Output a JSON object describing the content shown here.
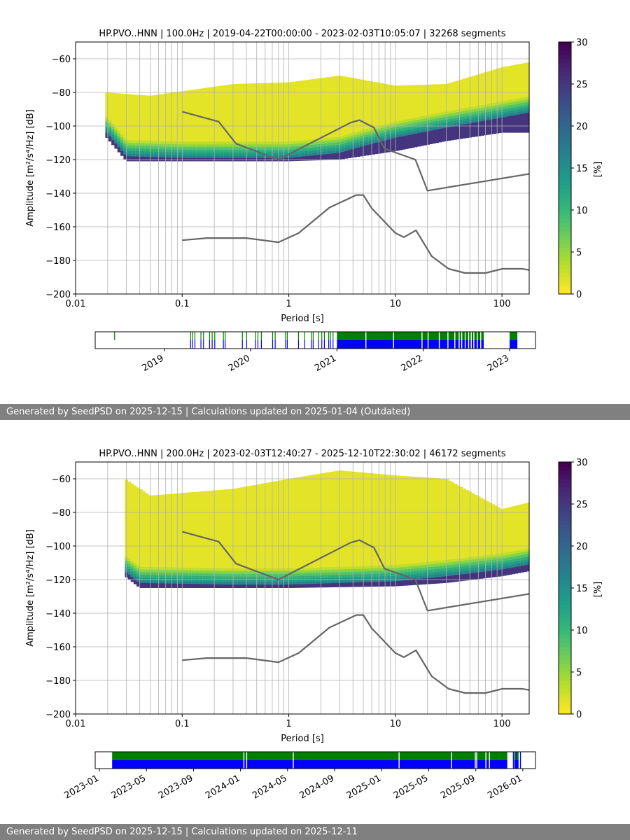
{
  "chart_data": [
    {
      "type": "heatmap",
      "title": "HP.PVO..HNN | 100.0Hz | 2019-04-22T00:00:00 - 2023-02-03T10:05:07 | 32268 segments",
      "xlabel": "Period [s]",
      "ylabel": "Amplitude [m²/s⁴/Hz] [dB]",
      "xscale": "log",
      "xlim": [
        0.01,
        180
      ],
      "ylim": [
        -200,
        -50
      ],
      "xticks": [
        "0.01",
        "0.1",
        "1",
        "10",
        "100"
      ],
      "yticks": [
        "−200",
        "−180",
        "−160",
        "−140",
        "−120",
        "−100",
        "−80",
        "−60"
      ],
      "colorbar": {
        "label": "[%]",
        "min": 0,
        "max": 30,
        "ticks": [
          "0",
          "5",
          "10",
          "15",
          "20",
          "25",
          "30"
        ],
        "colormap": "viridis_r"
      },
      "reference_curves": {
        "high_noise": [
          [
            0.1,
            -91.5
          ],
          [
            0.22,
            -97.4
          ],
          [
            0.32,
            -110.5
          ],
          [
            0.8,
            -120
          ],
          [
            3.8,
            -98
          ],
          [
            4.6,
            -96.5
          ],
          [
            6.3,
            -101
          ],
          [
            7.9,
            -113.5
          ],
          [
            15.4,
            -120
          ],
          [
            20,
            -138.5
          ],
          [
            180,
            -128.5
          ]
        ],
        "low_noise": [
          [
            0.1,
            -168
          ],
          [
            0.17,
            -166.7
          ],
          [
            0.4,
            -166.7
          ],
          [
            0.8,
            -169.2
          ],
          [
            1.24,
            -163.7
          ],
          [
            2.4,
            -148.6
          ],
          [
            4.3,
            -141.1
          ],
          [
            5.0,
            -141.1
          ],
          [
            6.0,
            -149
          ],
          [
            10,
            -163.7
          ],
          [
            12,
            -166.2
          ],
          [
            15.6,
            -162.1
          ],
          [
            21.9,
            -177.5
          ],
          [
            31.6,
            -185
          ],
          [
            45,
            -187.5
          ],
          [
            70,
            -187.5
          ],
          [
            101,
            -185
          ],
          [
            154,
            -185
          ],
          [
            180,
            -185.7
          ]
        ]
      },
      "psd_distribution": {
        "x_start": 0.019,
        "mode": [
          [
            0.019,
            -103
          ],
          [
            0.03,
            -118
          ],
          [
            0.1,
            -119
          ],
          [
            1,
            -119
          ],
          [
            3,
            -116
          ],
          [
            5,
            -112
          ],
          [
            10,
            -107
          ],
          [
            30,
            -101
          ],
          [
            100,
            -95
          ],
          [
            180,
            -92
          ]
        ],
        "upper": [
          [
            0.019,
            -80
          ],
          [
            0.05,
            -82
          ],
          [
            0.3,
            -75
          ],
          [
            1,
            -74
          ],
          [
            3,
            -70
          ],
          [
            10,
            -76
          ],
          [
            30,
            -75
          ],
          [
            100,
            -65
          ],
          [
            180,
            -62
          ]
        ],
        "lower": [
          [
            0.019,
            -106
          ],
          [
            0.03,
            -121
          ],
          [
            1,
            -121
          ],
          [
            3,
            -120
          ],
          [
            10,
            -115
          ],
          [
            30,
            -109
          ],
          [
            100,
            -104
          ],
          [
            180,
            -104
          ]
        ]
      },
      "availability": {
        "ticks": [
          "2019",
          "2020",
          "2021",
          "2022",
          "2023"
        ],
        "tick_dates": [
          2019.0,
          2020.0,
          2021.0,
          2022.0,
          2023.0
        ],
        "range": [
          2018.2,
          2023.3
        ],
        "full_coverage": [
          [
            2021.0,
            2022.7
          ],
          [
            2023.0,
            2023.09
          ]
        ],
        "sparse_marks": [
          2018.42,
          2019.3,
          2019.32,
          2019.35,
          2019.42,
          2019.45,
          2019.52,
          2019.55,
          2019.58,
          2019.68,
          2019.7,
          2019.9,
          2019.95,
          2020.05,
          2020.08,
          2020.12,
          2020.25,
          2020.28,
          2020.4,
          2020.42,
          2020.55,
          2020.62,
          2020.7,
          2020.72,
          2020.78,
          2020.82,
          2020.85,
          2020.9,
          2020.92,
          2020.95
        ],
        "gaps": [
          2021.33,
          2021.65,
          2021.98,
          2022.05,
          2022.18,
          2022.28,
          2022.36,
          2022.41,
          2022.44,
          2022.48,
          2022.52,
          2022.55,
          2022.58,
          2022.62,
          2022.66
        ]
      }
    },
    {
      "type": "heatmap",
      "title": "HP.PVO..HNN | 200.0Hz | 2023-02-03T12:40:27 - 2025-12-10T22:30:02 | 46172 segments",
      "xlabel": "Period [s]",
      "ylabel": "Amplitude [m²/s⁴/Hz] [dB]",
      "xscale": "log",
      "xlim": [
        0.01,
        180
      ],
      "ylim": [
        -200,
        -50
      ],
      "xticks": [
        "0.01",
        "0.1",
        "1",
        "10",
        "100"
      ],
      "yticks": [
        "−200",
        "−180",
        "−160",
        "−140",
        "−120",
        "−100",
        "−80",
        "−60"
      ],
      "colorbar": {
        "label": "[%]",
        "min": 0,
        "max": 30,
        "ticks": [
          "0",
          "5",
          "10",
          "15",
          "20",
          "25",
          "30"
        ],
        "colormap": "viridis_r"
      },
      "reference_curves": {
        "high_noise": [
          [
            0.1,
            -91.5
          ],
          [
            0.22,
            -97.4
          ],
          [
            0.32,
            -110.5
          ],
          [
            0.8,
            -120
          ],
          [
            3.8,
            -98
          ],
          [
            4.6,
            -96.5
          ],
          [
            6.3,
            -101
          ],
          [
            7.9,
            -113.5
          ],
          [
            15.4,
            -120
          ],
          [
            20,
            -138.5
          ],
          [
            180,
            -128.5
          ]
        ],
        "low_noise": [
          [
            0.1,
            -168
          ],
          [
            0.17,
            -166.7
          ],
          [
            0.4,
            -166.7
          ],
          [
            0.8,
            -169.2
          ],
          [
            1.24,
            -163.7
          ],
          [
            2.4,
            -148.6
          ],
          [
            4.3,
            -141.1
          ],
          [
            5.0,
            -141.1
          ],
          [
            6.0,
            -149
          ],
          [
            10,
            -163.7
          ],
          [
            12,
            -166.2
          ],
          [
            15.6,
            -162.1
          ],
          [
            21.9,
            -177.5
          ],
          [
            31.6,
            -185
          ],
          [
            45,
            -187.5
          ],
          [
            70,
            -187.5
          ],
          [
            101,
            -185
          ],
          [
            154,
            -185
          ],
          [
            180,
            -185.7
          ]
        ]
      },
      "psd_distribution": {
        "x_start": 0.029,
        "mode": [
          [
            0.029,
            -115
          ],
          [
            0.04,
            -122
          ],
          [
            0.3,
            -123
          ],
          [
            1,
            -123
          ],
          [
            3,
            -122
          ],
          [
            10,
            -121
          ],
          [
            30,
            -118
          ],
          [
            100,
            -114
          ],
          [
            180,
            -111
          ]
        ],
        "upper": [
          [
            0.029,
            -60
          ],
          [
            0.05,
            -70
          ],
          [
            0.3,
            -66
          ],
          [
            1,
            -60
          ],
          [
            3,
            -55
          ],
          [
            10,
            -58
          ],
          [
            30,
            -60
          ],
          [
            100,
            -78
          ],
          [
            180,
            -74
          ]
        ],
        "lower": [
          [
            0.029,
            -118
          ],
          [
            0.04,
            -125
          ],
          [
            1,
            -125
          ],
          [
            10,
            -124
          ],
          [
            30,
            -122
          ],
          [
            100,
            -118
          ],
          [
            180,
            -115
          ]
        ]
      },
      "availability": {
        "ticks": [
          "2023-01",
          "2023-05",
          "2023-09",
          "2024-01",
          "2024-05",
          "2024-09",
          "2025-01",
          "2025-05",
          "2025-09",
          "2026-01"
        ],
        "tick_dates": [
          2023.0,
          2023.333,
          2023.667,
          2024.0,
          2024.333,
          2024.667,
          2025.0,
          2025.333,
          2025.667,
          2026.0
        ],
        "range": [
          2022.97,
          2026.09
        ],
        "full_coverage": [
          [
            2023.09,
            2025.89
          ],
          [
            2025.94,
            2025.97
          ]
        ],
        "gaps": [
          2024.02,
          2024.04,
          2024.37,
          2025.12,
          2025.49,
          2025.66,
          2025.67,
          2025.735,
          2025.76
        ],
        "blue_gaps": [
          2024.37,
          2025.12
        ],
        "late_marks": [
          2025.93,
          2025.95,
          2025.98
        ]
      }
    }
  ],
  "footers": [
    "Generated by SeedPSD on 2025-12-15 | Calculations updated on 2025-01-04 (Outdated)",
    "Generated by SeedPSD on 2025-12-15 | Calculations updated on 2025-12-11"
  ]
}
